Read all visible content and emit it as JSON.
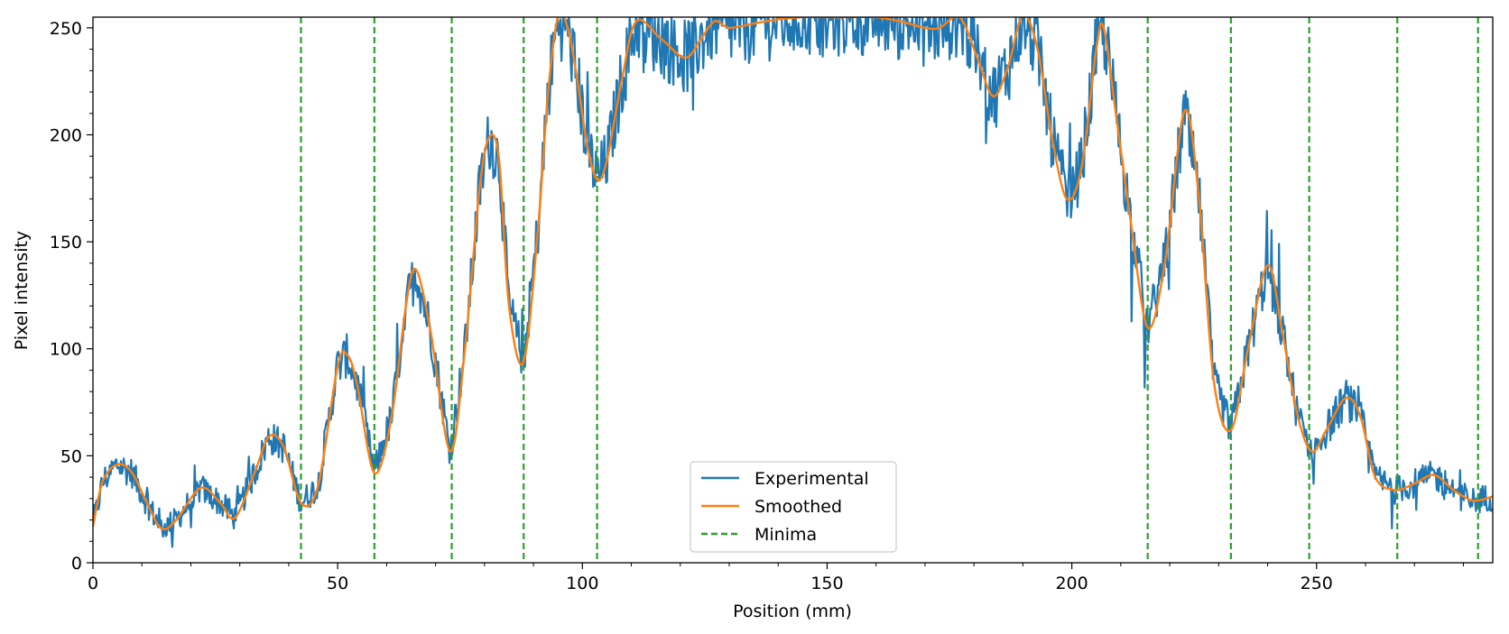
{
  "chart_data": {
    "type": "line",
    "title": "",
    "xlabel": "Position (mm)",
    "ylabel": "Pixel intensity",
    "xlim": [
      0,
      286
    ],
    "ylim": [
      0,
      255
    ],
    "xticks": [
      0,
      50,
      100,
      150,
      200,
      250
    ],
    "yticks": [
      0,
      50,
      100,
      150,
      200,
      250
    ],
    "grid": false,
    "legend": {
      "placement": "lower-center",
      "entries": [
        "Experimental",
        "Smoothed",
        "Minima"
      ]
    },
    "colors": {
      "experimental": "#1f77b4",
      "smoothed": "#ff7f0e",
      "minima": "#2ca02c"
    },
    "smoothed": {
      "x": [
        0,
        2,
        5,
        8,
        11,
        14,
        17,
        22,
        26,
        29,
        33,
        36,
        39,
        42.5,
        46,
        50,
        52,
        54,
        57.5,
        61,
        64,
        66,
        69,
        73,
        76,
        79,
        81,
        83,
        85,
        88,
        91,
        93,
        95,
        97,
        99,
        101,
        103,
        105,
        108,
        111,
        116,
        121,
        124,
        127,
        130,
        135,
        140,
        145,
        150,
        155,
        160,
        165,
        170,
        173,
        176,
        178,
        181,
        184,
        187,
        190,
        193,
        196,
        199,
        202,
        205,
        206.5,
        209,
        212,
        215.5,
        219,
        223,
        226,
        229,
        232.5,
        236,
        240,
        243,
        246,
        249,
        252,
        256,
        259,
        262,
        266,
        270,
        274,
        278,
        282,
        286
      ],
      "y": [
        17,
        38,
        46,
        42,
        28,
        16,
        20,
        35,
        28,
        21,
        42,
        59,
        54,
        28,
        36,
        92,
        97,
        83,
        42,
        68,
        121,
        137,
        108,
        52,
        100,
        175,
        199,
        188,
        120,
        94,
        158,
        220,
        255,
        250,
        225,
        195,
        179,
        188,
        225,
        253,
        245,
        236,
        244,
        253,
        250,
        252,
        254,
        255,
        255,
        255,
        255,
        253,
        250,
        250,
        255,
        252,
        234,
        218,
        232,
        256,
        240,
        198,
        170,
        185,
        240,
        250,
        210,
        160,
        110,
        140,
        211,
        170,
        85,
        62,
        100,
        139,
        108,
        70,
        52,
        62,
        77,
        68,
        40,
        34,
        37,
        41,
        34,
        29,
        31
      ]
    },
    "minima_x": [
      42.5,
      57.5,
      73.3,
      88.0,
      103.0,
      215.5,
      232.5,
      248.5,
      266.5,
      283.0
    ],
    "experimental": {
      "noise_band": 14,
      "samples": 1500
    }
  }
}
